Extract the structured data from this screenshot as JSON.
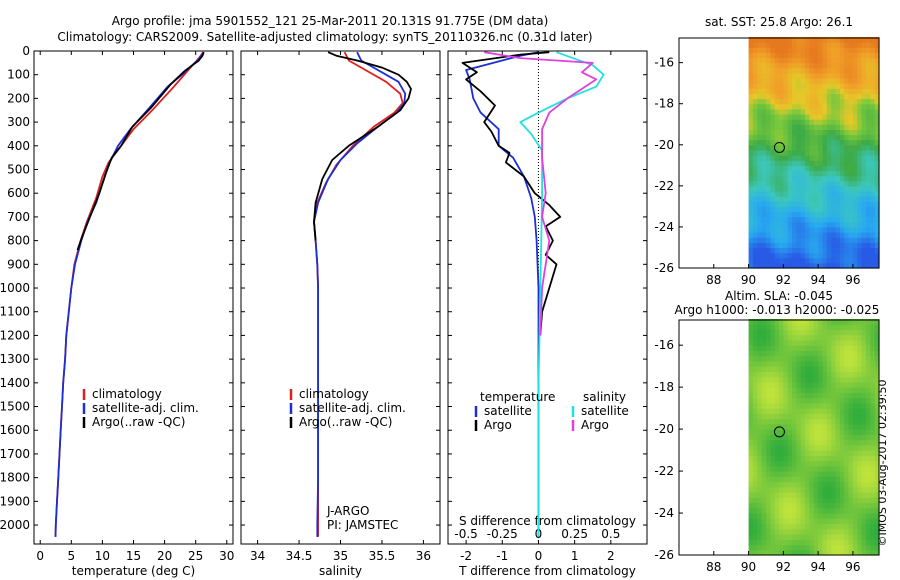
{
  "header": {
    "line1": "Argo profile: jma 5901552_121 25-Mar-2011 20.131S 91.775E (DM data)",
    "line2": "Climatology: CARS2009. Satellite-adjusted climatology: synTS_20110326.nc (0.31d later)"
  },
  "colors": {
    "climatology": "#e02020",
    "satellite": "#1a2fd6",
    "argo": "#000000",
    "sal_satellite": "#22e0e0",
    "sal_argo": "#e040e0"
  },
  "chart_data": [
    {
      "type": "line",
      "id": "temperature",
      "xlabel": "temperature (deg C)",
      "ylabel": "",
      "xlim": [
        -1,
        31
      ],
      "ylim": [
        2080,
        0
      ],
      "xticks": [
        0,
        5,
        10,
        15,
        20,
        25,
        30
      ],
      "yticks": [
        0,
        100,
        200,
        300,
        400,
        500,
        600,
        700,
        800,
        900,
        1000,
        1100,
        1200,
        1300,
        1400,
        1500,
        1600,
        1700,
        1800,
        1900,
        2000
      ],
      "legend": [
        "climatology",
        "satellite-adj. clim.",
        "Argo(..raw -QC)"
      ],
      "series": [
        {
          "name": "climatology",
          "points": [
            [
              26.2,
              5
            ],
            [
              25.8,
              20
            ],
            [
              25.2,
              40
            ],
            [
              24.5,
              60
            ],
            [
              23.5,
              90
            ],
            [
              21.5,
              150
            ],
            [
              18,
              250
            ],
            [
              15,
              330
            ],
            [
              13,
              400
            ],
            [
              11,
              470
            ],
            [
              10,
              530
            ],
            [
              9,
              620
            ],
            [
              7.5,
              720
            ],
            [
              6.5,
              800
            ],
            [
              5.5,
              900
            ],
            [
              5,
              1000
            ],
            [
              4.6,
              1100
            ],
            [
              4.2,
              1200
            ],
            [
              4,
              1300
            ],
            [
              3.7,
              1400
            ],
            [
              3.5,
              1500
            ],
            [
              3.3,
              1600
            ],
            [
              3.1,
              1700
            ],
            [
              2.9,
              1800
            ],
            [
              2.7,
              1900
            ],
            [
              2.5,
              2000
            ],
            [
              2.45,
              2050
            ]
          ]
        },
        {
          "name": "satellite-adj. clim.",
          "points": [
            [
              26.3,
              5
            ],
            [
              25.9,
              20
            ],
            [
              25.3,
              40
            ],
            [
              24.2,
              65
            ],
            [
              22.8,
              100
            ],
            [
              20.5,
              150
            ],
            [
              17.2,
              250
            ],
            [
              14.5,
              330
            ],
            [
              12.5,
              400
            ],
            [
              11,
              480
            ],
            [
              10,
              560
            ],
            [
              9,
              640
            ],
            [
              7.6,
              720
            ],
            [
              6.6,
              800
            ],
            [
              5.6,
              900
            ],
            [
              5,
              1000
            ],
            [
              4.6,
              1100
            ],
            [
              4.2,
              1200
            ],
            [
              4,
              1300
            ],
            [
              3.7,
              1400
            ],
            [
              3.5,
              1500
            ],
            [
              3.3,
              1600
            ],
            [
              3.1,
              1700
            ],
            [
              2.9,
              1800
            ],
            [
              2.7,
              1900
            ],
            [
              2.5,
              2000
            ],
            [
              2.45,
              2050
            ]
          ]
        },
        {
          "name": "Argo(..raw -QC)",
          "points": [
            [
              26.3,
              5
            ],
            [
              26.1,
              20
            ],
            [
              25.5,
              40
            ],
            [
              24.5,
              60
            ],
            [
              23.2,
              85
            ],
            [
              21,
              140
            ],
            [
              17.8,
              240
            ],
            [
              14.8,
              320
            ],
            [
              13,
              400
            ],
            [
              11.5,
              450
            ],
            [
              10.5,
              520
            ],
            [
              9.5,
              600
            ],
            [
              8,
              700
            ],
            [
              6.8,
              780
            ],
            [
              6,
              840
            ]
          ]
        }
      ]
    },
    {
      "type": "line",
      "id": "salinity",
      "xlabel": "salinity",
      "ylabel": "",
      "xlim": [
        33.8,
        36.2
      ],
      "ylim": [
        2080,
        0
      ],
      "xticks": [
        34,
        34.5,
        35,
        35.5,
        36
      ],
      "legend": [
        "climatology",
        "satellite-adj. clim.",
        "Argo(..raw -QC)"
      ],
      "annotations": [
        "J-ARGO",
        "PI: JAMSTEC"
      ],
      "series": [
        {
          "name": "climatology",
          "points": [
            [
              35.05,
              5
            ],
            [
              35.1,
              40
            ],
            [
              35.3,
              80
            ],
            [
              35.55,
              130
            ],
            [
              35.72,
              180
            ],
            [
              35.75,
              220
            ],
            [
              35.65,
              260
            ],
            [
              35.4,
              320
            ],
            [
              35.15,
              400
            ],
            [
              34.95,
              480
            ],
            [
              34.82,
              560
            ],
            [
              34.72,
              640
            ],
            [
              34.68,
              720
            ],
            [
              34.7,
              800
            ],
            [
              34.72,
              900
            ],
            [
              34.73,
              1000
            ],
            [
              34.73,
              1200
            ],
            [
              34.73,
              1400
            ],
            [
              34.73,
              1600
            ],
            [
              34.73,
              1800
            ],
            [
              34.73,
              2000
            ],
            [
              34.73,
              2050
            ]
          ]
        },
        {
          "name": "satellite-adj. clim.",
          "points": [
            [
              35.2,
              5
            ],
            [
              35.25,
              40
            ],
            [
              35.45,
              80
            ],
            [
              35.7,
              130
            ],
            [
              35.78,
              180
            ],
            [
              35.77,
              220
            ],
            [
              35.68,
              260
            ],
            [
              35.45,
              320
            ],
            [
              35.2,
              390
            ],
            [
              35,
              460
            ],
            [
              34.85,
              540
            ],
            [
              34.73,
              640
            ],
            [
              34.68,
              720
            ],
            [
              34.7,
              800
            ],
            [
              34.72,
              900
            ],
            [
              34.73,
              1000
            ],
            [
              34.73,
              1200
            ],
            [
              34.73,
              1400
            ],
            [
              34.73,
              1600
            ],
            [
              34.73,
              1800
            ],
            [
              34.72,
              2000
            ],
            [
              34.72,
              2050
            ]
          ]
        },
        {
          "name": "Argo(..raw -QC)",
          "points": [
            [
              34.85,
              5
            ],
            [
              34.95,
              20
            ],
            [
              35.2,
              40
            ],
            [
              35.5,
              70
            ],
            [
              35.7,
              100
            ],
            [
              35.8,
              130
            ],
            [
              35.85,
              160
            ],
            [
              35.82,
              200
            ],
            [
              35.72,
              250
            ],
            [
              35.45,
              320
            ],
            [
              35.1,
              400
            ],
            [
              34.9,
              460
            ],
            [
              34.78,
              540
            ],
            [
              34.7,
              640
            ],
            [
              34.68,
              720
            ],
            [
              34.7,
              800
            ]
          ]
        }
      ]
    },
    {
      "type": "line",
      "id": "difference",
      "xlabel": "T difference from climatology",
      "xlabel2": "S difference from climatology",
      "xlim": [
        -2.5,
        3
      ],
      "ylim": [
        2080,
        0
      ],
      "xticks": [
        -2,
        -1,
        0,
        1,
        2
      ],
      "xticks_top": [
        "-0.5",
        "-0.25",
        "0",
        "0.25",
        "0.5"
      ],
      "legend_titles": [
        "temperature",
        "salinity"
      ],
      "legend": [
        "satellite",
        "Argo",
        "satellite",
        "Argo"
      ],
      "series": [
        {
          "name": "satellite",
          "group": "temperature",
          "points": [
            [
              0,
              5
            ],
            [
              -0.5,
              20
            ],
            [
              -1.5,
              60
            ],
            [
              -2,
              80
            ],
            [
              -1.9,
              120
            ],
            [
              -1.8,
              200
            ],
            [
              -1.6,
              260
            ],
            [
              -1.1,
              330
            ],
            [
              -1.1,
              400
            ],
            [
              -0.7,
              450
            ],
            [
              -0.4,
              530
            ],
            [
              -0.2,
              620
            ],
            [
              -0.1,
              700
            ],
            [
              -0.05,
              800
            ],
            [
              0,
              1000
            ],
            [
              0,
              2050
            ]
          ]
        },
        {
          "name": "Argo",
          "group": "temperature",
          "points": [
            [
              0.3,
              5
            ],
            [
              -0.5,
              15
            ],
            [
              -2.1,
              50
            ],
            [
              -1.7,
              90
            ],
            [
              -2,
              120
            ],
            [
              -1.6,
              170
            ],
            [
              -1.2,
              230
            ],
            [
              -1.5,
              300
            ],
            [
              -1.3,
              340
            ],
            [
              -1.1,
              400
            ],
            [
              -0.8,
              430
            ],
            [
              -0.9,
              470
            ],
            [
              -0.4,
              530
            ],
            [
              -0.1,
              600
            ],
            [
              0.3,
              650
            ],
            [
              0.6,
              700
            ],
            [
              0.2,
              740
            ],
            [
              0.4,
              800
            ],
            [
              0.2,
              860
            ],
            [
              0.5,
              900
            ],
            [
              0.3,
              1000
            ],
            [
              0.1,
              1100
            ],
            [
              0.05,
              1200
            ]
          ]
        },
        {
          "name": "satellite",
          "group": "salinity",
          "points": [
            [
              0.5,
              5
            ],
            [
              1.5,
              60
            ],
            [
              1.8,
              100
            ],
            [
              1.6,
              150
            ],
            [
              0.8,
              200
            ],
            [
              0,
              260
            ],
            [
              -0.5,
              300
            ],
            [
              -0.2,
              350
            ],
            [
              0.1,
              420
            ],
            [
              0.1,
              600
            ],
            [
              0.08,
              800
            ],
            [
              0.05,
              1000
            ],
            [
              0.03,
              1200
            ],
            [
              0,
              1400
            ],
            [
              0,
              2050
            ]
          ]
        },
        {
          "name": "Argo",
          "group": "salinity",
          "points": [
            [
              -1.5,
              5
            ],
            [
              -0.5,
              30
            ],
            [
              1.5,
              50
            ],
            [
              1.2,
              90
            ],
            [
              1.6,
              120
            ],
            [
              1.2,
              160
            ],
            [
              0.8,
              200
            ],
            [
              0.3,
              260
            ],
            [
              0.1,
              330
            ],
            [
              0.1,
              450
            ],
            [
              0.2,
              600
            ],
            [
              0.1,
              700
            ],
            [
              0.3,
              800
            ],
            [
              0.2,
              900
            ],
            [
              0.1,
              1000
            ],
            [
              0.05,
              1200
            ]
          ]
        }
      ]
    },
    {
      "type": "heatmap",
      "id": "sst",
      "title": "sat. SST: 25.8  Argo: 26.1",
      "xlim": [
        86,
        97.5
      ],
      "ylim": [
        -26,
        -14.8
      ],
      "xticks": [
        88,
        90,
        92,
        94,
        96
      ],
      "yticks": [
        -16,
        -18,
        -20,
        -22,
        -24,
        -26
      ],
      "data_xlim": [
        90,
        97.5
      ],
      "marker": [
        91.775,
        -20.131
      ]
    },
    {
      "type": "heatmap",
      "id": "sla",
      "title": "Altim. SLA: -0.045",
      "subtitle": "Argo h1000: -0.013 h2000: -0.025",
      "xlim": [
        86,
        97.5
      ],
      "ylim": [
        -26,
        -14.8
      ],
      "xticks": [
        88,
        90,
        92,
        94,
        96
      ],
      "yticks": [
        -16,
        -18,
        -20,
        -22,
        -24,
        -26
      ],
      "data_xlim": [
        90,
        97.5
      ],
      "marker": [
        91.775,
        -20.131
      ]
    }
  ],
  "footer": {
    "stamp": "©IMOS 03-Aug-2017 02:39:50"
  }
}
